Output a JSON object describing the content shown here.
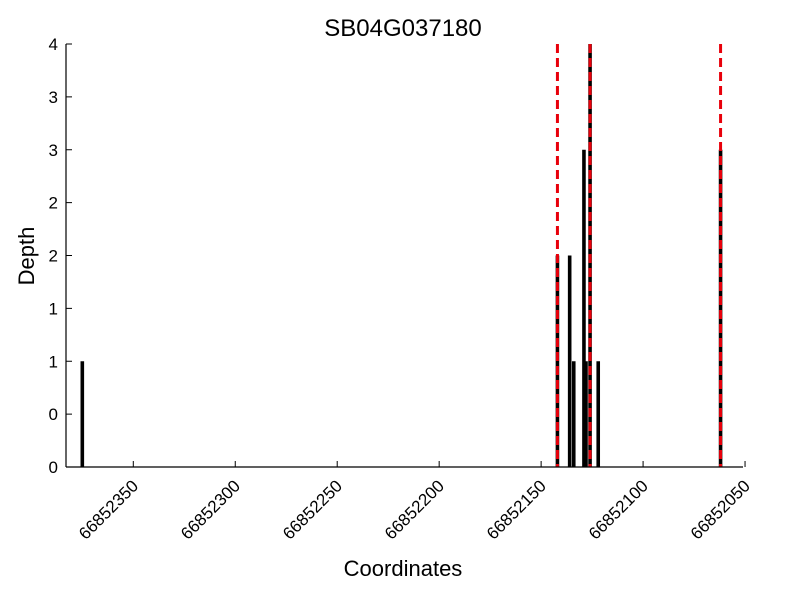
{
  "chart_data": {
    "type": "bar",
    "title": "SB04G037180",
    "xlabel": "Coordinates",
    "ylabel": "Depth",
    "x_axis_reversed": true,
    "xlim": [
      66852383,
      66852051
    ],
    "ylim": [
      0,
      4
    ],
    "x_ticks": [
      66852350,
      66852300,
      66852250,
      66852200,
      66852150,
      66852100,
      66852050
    ],
    "x_tick_labels": [
      "66852350",
      "66852300",
      "66852250",
      "66852200",
      "66852150",
      "66852100",
      "66852050"
    ],
    "y_ticks": [
      0,
      0.5,
      1,
      1.5,
      2,
      2.5,
      3,
      3.5,
      4
    ],
    "y_tick_labels": [
      "0",
      "0",
      "1",
      "1",
      "2",
      "2",
      "3",
      "3",
      "4"
    ],
    "bar_color": "#000000",
    "series": [
      {
        "x": [
          66852375,
          66852142,
          66852136,
          66852134,
          66852129,
          66852128,
          66852126,
          66852122,
          66852062
        ],
        "values": [
          1,
          2,
          2,
          1,
          3,
          1,
          4,
          1,
          3
        ]
      }
    ],
    "reference_lines": {
      "color": "#e8000b",
      "style": "dashed",
      "x": [
        66852142,
        66852126,
        66852062
      ]
    },
    "grid": false,
    "legend": "none"
  }
}
